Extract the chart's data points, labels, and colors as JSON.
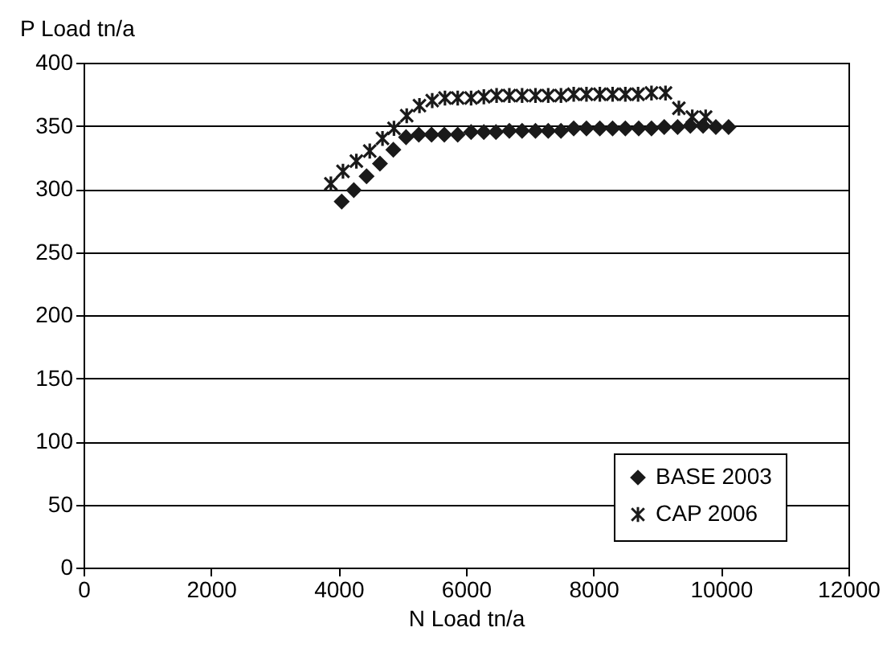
{
  "chart_data": {
    "type": "scatter",
    "xlabel": "N Load tn/a",
    "ylabel": "P Load tn/a",
    "xlim": [
      0,
      12000
    ],
    "xticks": [
      0,
      2000,
      4000,
      6000,
      8000,
      10000,
      12000
    ],
    "ylim": [
      0,
      400
    ],
    "yticks": [
      0,
      50,
      100,
      150,
      200,
      250,
      300,
      350,
      400
    ],
    "grid": "y",
    "legend": "bottom right",
    "series": [
      {
        "name": "BASE 2003",
        "color": "#1a1a1a",
        "marker": "diamond",
        "x": [
          4050,
          4240,
          4440,
          4650,
          4860,
          5060,
          5260,
          5460,
          5660,
          5870,
          6080,
          6280,
          6470,
          6680,
          6880,
          7090,
          7290,
          7490,
          7690,
          7890,
          8100,
          8300,
          8500,
          8710,
          8910,
          9110,
          9320,
          9520,
          9720,
          9920,
          10120
        ],
        "values": [
          290,
          299,
          310,
          320,
          331,
          341,
          343,
          343,
          343,
          343,
          345,
          345,
          345,
          346,
          346,
          346,
          346,
          346,
          348,
          348,
          348,
          348,
          348,
          348,
          348,
          349,
          349,
          350,
          350,
          349,
          349
        ]
      },
      {
        "name": "CAP 2006",
        "color": "#1a1a1a",
        "marker": "cross",
        "x": [
          3880,
          4070,
          4280,
          4490,
          4690,
          4870,
          5070,
          5270,
          5470,
          5670,
          5870,
          6080,
          6280,
          6480,
          6680,
          6880,
          7090,
          7290,
          7490,
          7690,
          7890,
          8100,
          8300,
          8500,
          8700,
          8910,
          9130,
          9340,
          9550,
          9760
        ],
        "values": [
          304,
          314,
          322,
          330,
          340,
          348,
          358,
          366,
          370,
          372,
          372,
          372,
          373,
          374,
          374,
          374,
          374,
          374,
          374,
          375,
          375,
          375,
          375,
          375,
          375,
          376,
          376,
          364,
          357,
          357
        ]
      }
    ]
  }
}
